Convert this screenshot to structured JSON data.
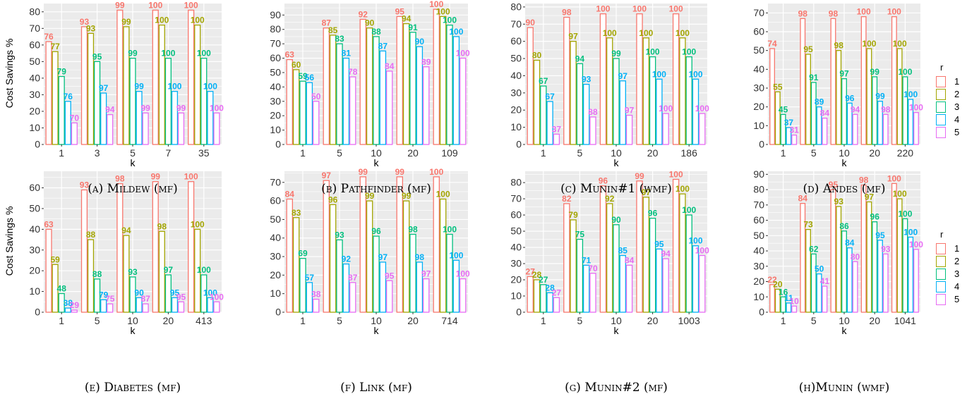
{
  "colors": {
    "r1": "#F8766D",
    "r2": "#A3A500",
    "r3": "#00BF7D",
    "r4": "#00B0F6",
    "r5": "#E76BF3",
    "panel_bg": "#EBEBEB",
    "grid": "#FFFFFF"
  },
  "y_axis_label": "Cost Savings %",
  "x_axis_label": "k",
  "legend": {
    "title": "r",
    "items": [
      "1",
      "2",
      "3",
      "4",
      "5"
    ]
  },
  "chart_data": [
    {
      "type": "bar",
      "caption": "(a) Mildew (mf)",
      "categories": [
        "1",
        "3",
        "5",
        "7",
        "35"
      ],
      "yticks": [
        0,
        10,
        20,
        30,
        40,
        50,
        60,
        70,
        80
      ],
      "ylim": [
        0,
        85
      ],
      "series": [
        {
          "name": "1",
          "values": [
            62,
            71,
            81,
            81,
            81
          ],
          "labels": [
            "76",
            "93",
            "99",
            "100",
            "100"
          ]
        },
        {
          "name": "2",
          "values": [
            56,
            67,
            71,
            72,
            72
          ],
          "labels": [
            "77",
            "93",
            "99",
            "100",
            "100"
          ]
        },
        {
          "name": "3",
          "values": [
            41,
            50,
            52,
            52,
            52
          ],
          "labels": [
            "79",
            "95",
            "99",
            "100",
            "100"
          ]
        },
        {
          "name": "4",
          "values": [
            26,
            31,
            32,
            32,
            32
          ],
          "labels": [
            "76",
            "97",
            "99",
            "100",
            "100"
          ]
        },
        {
          "name": "5",
          "values": [
            13,
            18,
            19,
            19,
            19
          ],
          "labels": [
            "70",
            "94",
            "99",
            "99",
            "100"
          ]
        }
      ]
    },
    {
      "type": "bar",
      "caption": "(b) Pathfinder (mf)",
      "categories": [
        "1",
        "5",
        "10",
        "20",
        "109"
      ],
      "yticks": [
        0,
        10,
        20,
        30,
        40,
        50,
        60,
        70,
        80,
        90
      ],
      "ylim": [
        0,
        98
      ],
      "series": [
        {
          "name": "1",
          "values": [
            59,
            81,
            87,
            89,
            94
          ],
          "labels": [
            "63",
            "87",
            "92",
            "95",
            "100"
          ]
        },
        {
          "name": "2",
          "values": [
            52,
            76,
            81,
            84,
            89
          ],
          "labels": [
            "60",
            "85",
            "90",
            "94",
            "100"
          ]
        },
        {
          "name": "3",
          "values": [
            44,
            70,
            75,
            78,
            83
          ],
          "labels": [
            "59",
            "83",
            "88",
            "91",
            "100"
          ]
        },
        {
          "name": "4",
          "values": [
            43,
            60,
            65,
            68,
            75
          ],
          "labels": [
            "56",
            "81",
            "87",
            "90",
            "100"
          ]
        },
        {
          "name": "5",
          "values": [
            30,
            47,
            51,
            54,
            60
          ],
          "labels": [
            "50",
            "78",
            "84",
            "89",
            "100"
          ]
        }
      ]
    },
    {
      "type": "bar",
      "caption": "(c) Munin#1 (wmf)",
      "categories": [
        "1",
        "5",
        "10",
        "20",
        "186"
      ],
      "yticks": [
        0,
        10,
        20,
        30,
        40,
        50,
        60,
        70,
        80
      ],
      "ylim": [
        0,
        82
      ],
      "series": [
        {
          "name": "1",
          "values": [
            68,
            74,
            76,
            76,
            76
          ],
          "labels": [
            "90",
            "98",
            "100",
            "100",
            "100"
          ]
        },
        {
          "name": "2",
          "values": [
            49,
            60,
            62,
            62,
            62
          ],
          "labels": [
            "80",
            "97",
            "100",
            "100",
            "100"
          ]
        },
        {
          "name": "3",
          "values": [
            34,
            47,
            50,
            51,
            51
          ],
          "labels": [
            "67",
            "94",
            "99",
            "100",
            "100"
          ]
        },
        {
          "name": "4",
          "values": [
            25,
            35,
            37,
            38,
            38
          ],
          "labels": [
            "67",
            "93",
            "97",
            "100",
            "100"
          ]
        },
        {
          "name": "5",
          "values": [
            6,
            16,
            17,
            18,
            18
          ],
          "labels": [
            "37",
            "88",
            "97",
            "100",
            "100"
          ]
        }
      ]
    },
    {
      "type": "bar",
      "caption": "(d) Andes (mf)",
      "categories": [
        "1",
        "5",
        "10",
        "20",
        "220"
      ],
      "yticks": [
        0,
        10,
        20,
        30,
        40,
        50,
        60,
        70
      ],
      "ylim": [
        0,
        75
      ],
      "series": [
        {
          "name": "1",
          "values": [
            51,
            67,
            67,
            68,
            68
          ],
          "labels": [
            "74",
            "98",
            "98",
            "100",
            "100"
          ]
        },
        {
          "name": "2",
          "values": [
            28,
            48,
            50,
            51,
            51
          ],
          "labels": [
            "55",
            "95",
            "98",
            "100",
            "100"
          ]
        },
        {
          "name": "3",
          "values": [
            16,
            33,
            35,
            36,
            36
          ],
          "labels": [
            "45",
            "91",
            "97",
            "99",
            "100"
          ]
        },
        {
          "name": "4",
          "values": [
            9,
            20,
            22,
            23,
            24
          ],
          "labels": [
            "37",
            "89",
            "96",
            "99",
            "100"
          ]
        },
        {
          "name": "5",
          "values": [
            5,
            14,
            16,
            16,
            17
          ],
          "labels": [
            "31",
            "84",
            "94",
            "98",
            "100"
          ]
        }
      ]
    },
    {
      "type": "bar",
      "caption": "(e) Diabetes (mf)",
      "categories": [
        "1",
        "5",
        "10",
        "20",
        "413"
      ],
      "yticks": [
        0,
        10,
        20,
        30,
        40,
        50,
        60
      ],
      "ylim": [
        0,
        68
      ],
      "series": [
        {
          "name": "1",
          "values": [
            40,
            59,
            62,
            63,
            63
          ],
          "labels": [
            "63",
            "93",
            "98",
            "99",
            "100"
          ]
        },
        {
          "name": "2",
          "values": [
            23,
            35,
            37,
            39,
            40
          ],
          "labels": [
            "59",
            "88",
            "94",
            "98",
            "100"
          ]
        },
        {
          "name": "3",
          "values": [
            9,
            16,
            17,
            18,
            18
          ],
          "labels": [
            "48",
            "88",
            "93",
            "97",
            "100"
          ]
        },
        {
          "name": "4",
          "values": [
            2,
            6,
            7,
            7,
            7
          ],
          "labels": [
            "38",
            "79",
            "90",
            "95",
            "100"
          ]
        },
        {
          "name": "5",
          "values": [
            1,
            4,
            4,
            5,
            5
          ],
          "labels": [
            "29",
            "75",
            "87",
            "95",
            "100"
          ]
        }
      ]
    },
    {
      "type": "bar",
      "caption": "(f) Link (mf)",
      "categories": [
        "1",
        "5",
        "10",
        "20",
        "714"
      ],
      "yticks": [
        0,
        10,
        20,
        30,
        40,
        50,
        60,
        70
      ],
      "ylim": [
        0,
        76
      ],
      "series": [
        {
          "name": "1",
          "values": [
            61,
            71,
            73,
            73,
            73
          ],
          "labels": [
            "84",
            "97",
            "99",
            "99",
            "100"
          ]
        },
        {
          "name": "2",
          "values": [
            51,
            58,
            60,
            60,
            61
          ],
          "labels": [
            "83",
            "96",
            "99",
            "99",
            "100"
          ]
        },
        {
          "name": "3",
          "values": [
            29,
            39,
            41,
            42,
            42
          ],
          "labels": [
            "69",
            "93",
            "96",
            "98",
            "100"
          ]
        },
        {
          "name": "4",
          "values": [
            16,
            26,
            27,
            27,
            28
          ],
          "labels": [
            "57",
            "92",
            "97",
            "98",
            "100"
          ]
        },
        {
          "name": "5",
          "values": [
            7,
            16,
            17,
            18,
            18
          ],
          "labels": [
            "38",
            "87",
            "95",
            "97",
            "100"
          ]
        }
      ]
    },
    {
      "type": "bar",
      "caption": "(g) Munin#2 (mf)",
      "categories": [
        "1",
        "5",
        "10",
        "20",
        "1003"
      ],
      "yticks": [
        0,
        10,
        20,
        30,
        40,
        50,
        60,
        70,
        80
      ],
      "ylim": [
        0,
        87
      ],
      "series": [
        {
          "name": "1",
          "values": [
            22,
            67,
            78,
            81,
            82
          ],
          "labels": [
            "27",
            "82",
            "96",
            "99",
            "100"
          ]
        },
        {
          "name": "2",
          "values": [
            20,
            57,
            67,
            71,
            73
          ],
          "labels": [
            "28",
            "79",
            "92",
            "97",
            "100"
          ]
        },
        {
          "name": "3",
          "values": [
            17,
            45,
            54,
            58,
            60
          ],
          "labels": [
            "27",
            "75",
            "90",
            "96",
            "100"
          ]
        },
        {
          "name": "4",
          "values": [
            12,
            29,
            35,
            39,
            41
          ],
          "labels": [
            "28",
            "71",
            "85",
            "95",
            "100"
          ]
        },
        {
          "name": "5",
          "values": [
            9,
            24,
            29,
            33,
            35
          ],
          "labels": [
            "27",
            "70",
            "84",
            "94",
            "100"
          ]
        }
      ]
    },
    {
      "type": "bar",
      "caption": "(h)Munin (wmf)",
      "categories": [
        "1",
        "5",
        "10",
        "20",
        "1041"
      ],
      "yticks": [
        0,
        10,
        20,
        30,
        40,
        50,
        60,
        70,
        80,
        90
      ],
      "ylim": [
        0,
        92
      ],
      "series": [
        {
          "name": "1",
          "values": [
            18,
            71,
            80,
            83,
            84
          ],
          "labels": [
            "22",
            "84",
            "95",
            "98",
            "100"
          ]
        },
        {
          "name": "2",
          "values": [
            15,
            54,
            69,
            72,
            74
          ],
          "labels": [
            "20",
            "73",
            "93",
            "97",
            "100"
          ]
        },
        {
          "name": "3",
          "values": [
            10,
            38,
            53,
            59,
            61
          ],
          "labels": [
            "16",
            "62",
            "86",
            "96",
            "100"
          ]
        },
        {
          "name": "4",
          "values": [
            6,
            25,
            42,
            47,
            49
          ],
          "labels": [
            "11",
            "50",
            "84",
            "95",
            "100"
          ]
        },
        {
          "name": "5",
          "values": [
            4,
            17,
            33,
            38,
            41
          ],
          "labels": [
            "10",
            "41",
            "80",
            "93",
            "100"
          ]
        }
      ]
    }
  ]
}
